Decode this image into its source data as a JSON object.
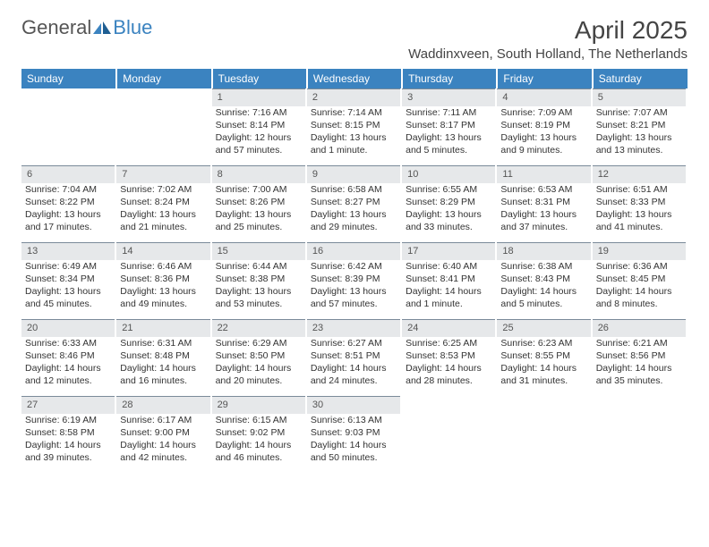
{
  "logo": {
    "text1": "General",
    "text2": "Blue"
  },
  "title": "April 2025",
  "location": "Waddinxveen, South Holland, The Netherlands",
  "colors": {
    "header_bg": "#3b83c0",
    "header_text": "#ffffff",
    "daynum_bg": "#e6e8ea",
    "daynum_border": "#7a8a99",
    "body_text": "#333333",
    "title_text": "#444444",
    "logo_gray": "#555555",
    "logo_blue": "#3b83c0",
    "page_bg": "#ffffff"
  },
  "typography": {
    "title_fontsize": 28,
    "location_fontsize": 15,
    "dayheader_fontsize": 12,
    "cell_fontsize": 10.5,
    "logo_fontsize": 22
  },
  "day_headers": [
    "Sunday",
    "Monday",
    "Tuesday",
    "Wednesday",
    "Thursday",
    "Friday",
    "Saturday"
  ],
  "weeks": [
    [
      null,
      null,
      {
        "n": "1",
        "sr": "Sunrise: 7:16 AM",
        "ss": "Sunset: 8:14 PM",
        "dl1": "Daylight: 12 hours",
        "dl2": "and 57 minutes."
      },
      {
        "n": "2",
        "sr": "Sunrise: 7:14 AM",
        "ss": "Sunset: 8:15 PM",
        "dl1": "Daylight: 13 hours",
        "dl2": "and 1 minute."
      },
      {
        "n": "3",
        "sr": "Sunrise: 7:11 AM",
        "ss": "Sunset: 8:17 PM",
        "dl1": "Daylight: 13 hours",
        "dl2": "and 5 minutes."
      },
      {
        "n": "4",
        "sr": "Sunrise: 7:09 AM",
        "ss": "Sunset: 8:19 PM",
        "dl1": "Daylight: 13 hours",
        "dl2": "and 9 minutes."
      },
      {
        "n": "5",
        "sr": "Sunrise: 7:07 AM",
        "ss": "Sunset: 8:21 PM",
        "dl1": "Daylight: 13 hours",
        "dl2": "and 13 minutes."
      }
    ],
    [
      {
        "n": "6",
        "sr": "Sunrise: 7:04 AM",
        "ss": "Sunset: 8:22 PM",
        "dl1": "Daylight: 13 hours",
        "dl2": "and 17 minutes."
      },
      {
        "n": "7",
        "sr": "Sunrise: 7:02 AM",
        "ss": "Sunset: 8:24 PM",
        "dl1": "Daylight: 13 hours",
        "dl2": "and 21 minutes."
      },
      {
        "n": "8",
        "sr": "Sunrise: 7:00 AM",
        "ss": "Sunset: 8:26 PM",
        "dl1": "Daylight: 13 hours",
        "dl2": "and 25 minutes."
      },
      {
        "n": "9",
        "sr": "Sunrise: 6:58 AM",
        "ss": "Sunset: 8:27 PM",
        "dl1": "Daylight: 13 hours",
        "dl2": "and 29 minutes."
      },
      {
        "n": "10",
        "sr": "Sunrise: 6:55 AM",
        "ss": "Sunset: 8:29 PM",
        "dl1": "Daylight: 13 hours",
        "dl2": "and 33 minutes."
      },
      {
        "n": "11",
        "sr": "Sunrise: 6:53 AM",
        "ss": "Sunset: 8:31 PM",
        "dl1": "Daylight: 13 hours",
        "dl2": "and 37 minutes."
      },
      {
        "n": "12",
        "sr": "Sunrise: 6:51 AM",
        "ss": "Sunset: 8:33 PM",
        "dl1": "Daylight: 13 hours",
        "dl2": "and 41 minutes."
      }
    ],
    [
      {
        "n": "13",
        "sr": "Sunrise: 6:49 AM",
        "ss": "Sunset: 8:34 PM",
        "dl1": "Daylight: 13 hours",
        "dl2": "and 45 minutes."
      },
      {
        "n": "14",
        "sr": "Sunrise: 6:46 AM",
        "ss": "Sunset: 8:36 PM",
        "dl1": "Daylight: 13 hours",
        "dl2": "and 49 minutes."
      },
      {
        "n": "15",
        "sr": "Sunrise: 6:44 AM",
        "ss": "Sunset: 8:38 PM",
        "dl1": "Daylight: 13 hours",
        "dl2": "and 53 minutes."
      },
      {
        "n": "16",
        "sr": "Sunrise: 6:42 AM",
        "ss": "Sunset: 8:39 PM",
        "dl1": "Daylight: 13 hours",
        "dl2": "and 57 minutes."
      },
      {
        "n": "17",
        "sr": "Sunrise: 6:40 AM",
        "ss": "Sunset: 8:41 PM",
        "dl1": "Daylight: 14 hours",
        "dl2": "and 1 minute."
      },
      {
        "n": "18",
        "sr": "Sunrise: 6:38 AM",
        "ss": "Sunset: 8:43 PM",
        "dl1": "Daylight: 14 hours",
        "dl2": "and 5 minutes."
      },
      {
        "n": "19",
        "sr": "Sunrise: 6:36 AM",
        "ss": "Sunset: 8:45 PM",
        "dl1": "Daylight: 14 hours",
        "dl2": "and 8 minutes."
      }
    ],
    [
      {
        "n": "20",
        "sr": "Sunrise: 6:33 AM",
        "ss": "Sunset: 8:46 PM",
        "dl1": "Daylight: 14 hours",
        "dl2": "and 12 minutes."
      },
      {
        "n": "21",
        "sr": "Sunrise: 6:31 AM",
        "ss": "Sunset: 8:48 PM",
        "dl1": "Daylight: 14 hours",
        "dl2": "and 16 minutes."
      },
      {
        "n": "22",
        "sr": "Sunrise: 6:29 AM",
        "ss": "Sunset: 8:50 PM",
        "dl1": "Daylight: 14 hours",
        "dl2": "and 20 minutes."
      },
      {
        "n": "23",
        "sr": "Sunrise: 6:27 AM",
        "ss": "Sunset: 8:51 PM",
        "dl1": "Daylight: 14 hours",
        "dl2": "and 24 minutes."
      },
      {
        "n": "24",
        "sr": "Sunrise: 6:25 AM",
        "ss": "Sunset: 8:53 PM",
        "dl1": "Daylight: 14 hours",
        "dl2": "and 28 minutes."
      },
      {
        "n": "25",
        "sr": "Sunrise: 6:23 AM",
        "ss": "Sunset: 8:55 PM",
        "dl1": "Daylight: 14 hours",
        "dl2": "and 31 minutes."
      },
      {
        "n": "26",
        "sr": "Sunrise: 6:21 AM",
        "ss": "Sunset: 8:56 PM",
        "dl1": "Daylight: 14 hours",
        "dl2": "and 35 minutes."
      }
    ],
    [
      {
        "n": "27",
        "sr": "Sunrise: 6:19 AM",
        "ss": "Sunset: 8:58 PM",
        "dl1": "Daylight: 14 hours",
        "dl2": "and 39 minutes."
      },
      {
        "n": "28",
        "sr": "Sunrise: 6:17 AM",
        "ss": "Sunset: 9:00 PM",
        "dl1": "Daylight: 14 hours",
        "dl2": "and 42 minutes."
      },
      {
        "n": "29",
        "sr": "Sunrise: 6:15 AM",
        "ss": "Sunset: 9:02 PM",
        "dl1": "Daylight: 14 hours",
        "dl2": "and 46 minutes."
      },
      {
        "n": "30",
        "sr": "Sunrise: 6:13 AM",
        "ss": "Sunset: 9:03 PM",
        "dl1": "Daylight: 14 hours",
        "dl2": "and 50 minutes."
      },
      null,
      null,
      null
    ]
  ]
}
